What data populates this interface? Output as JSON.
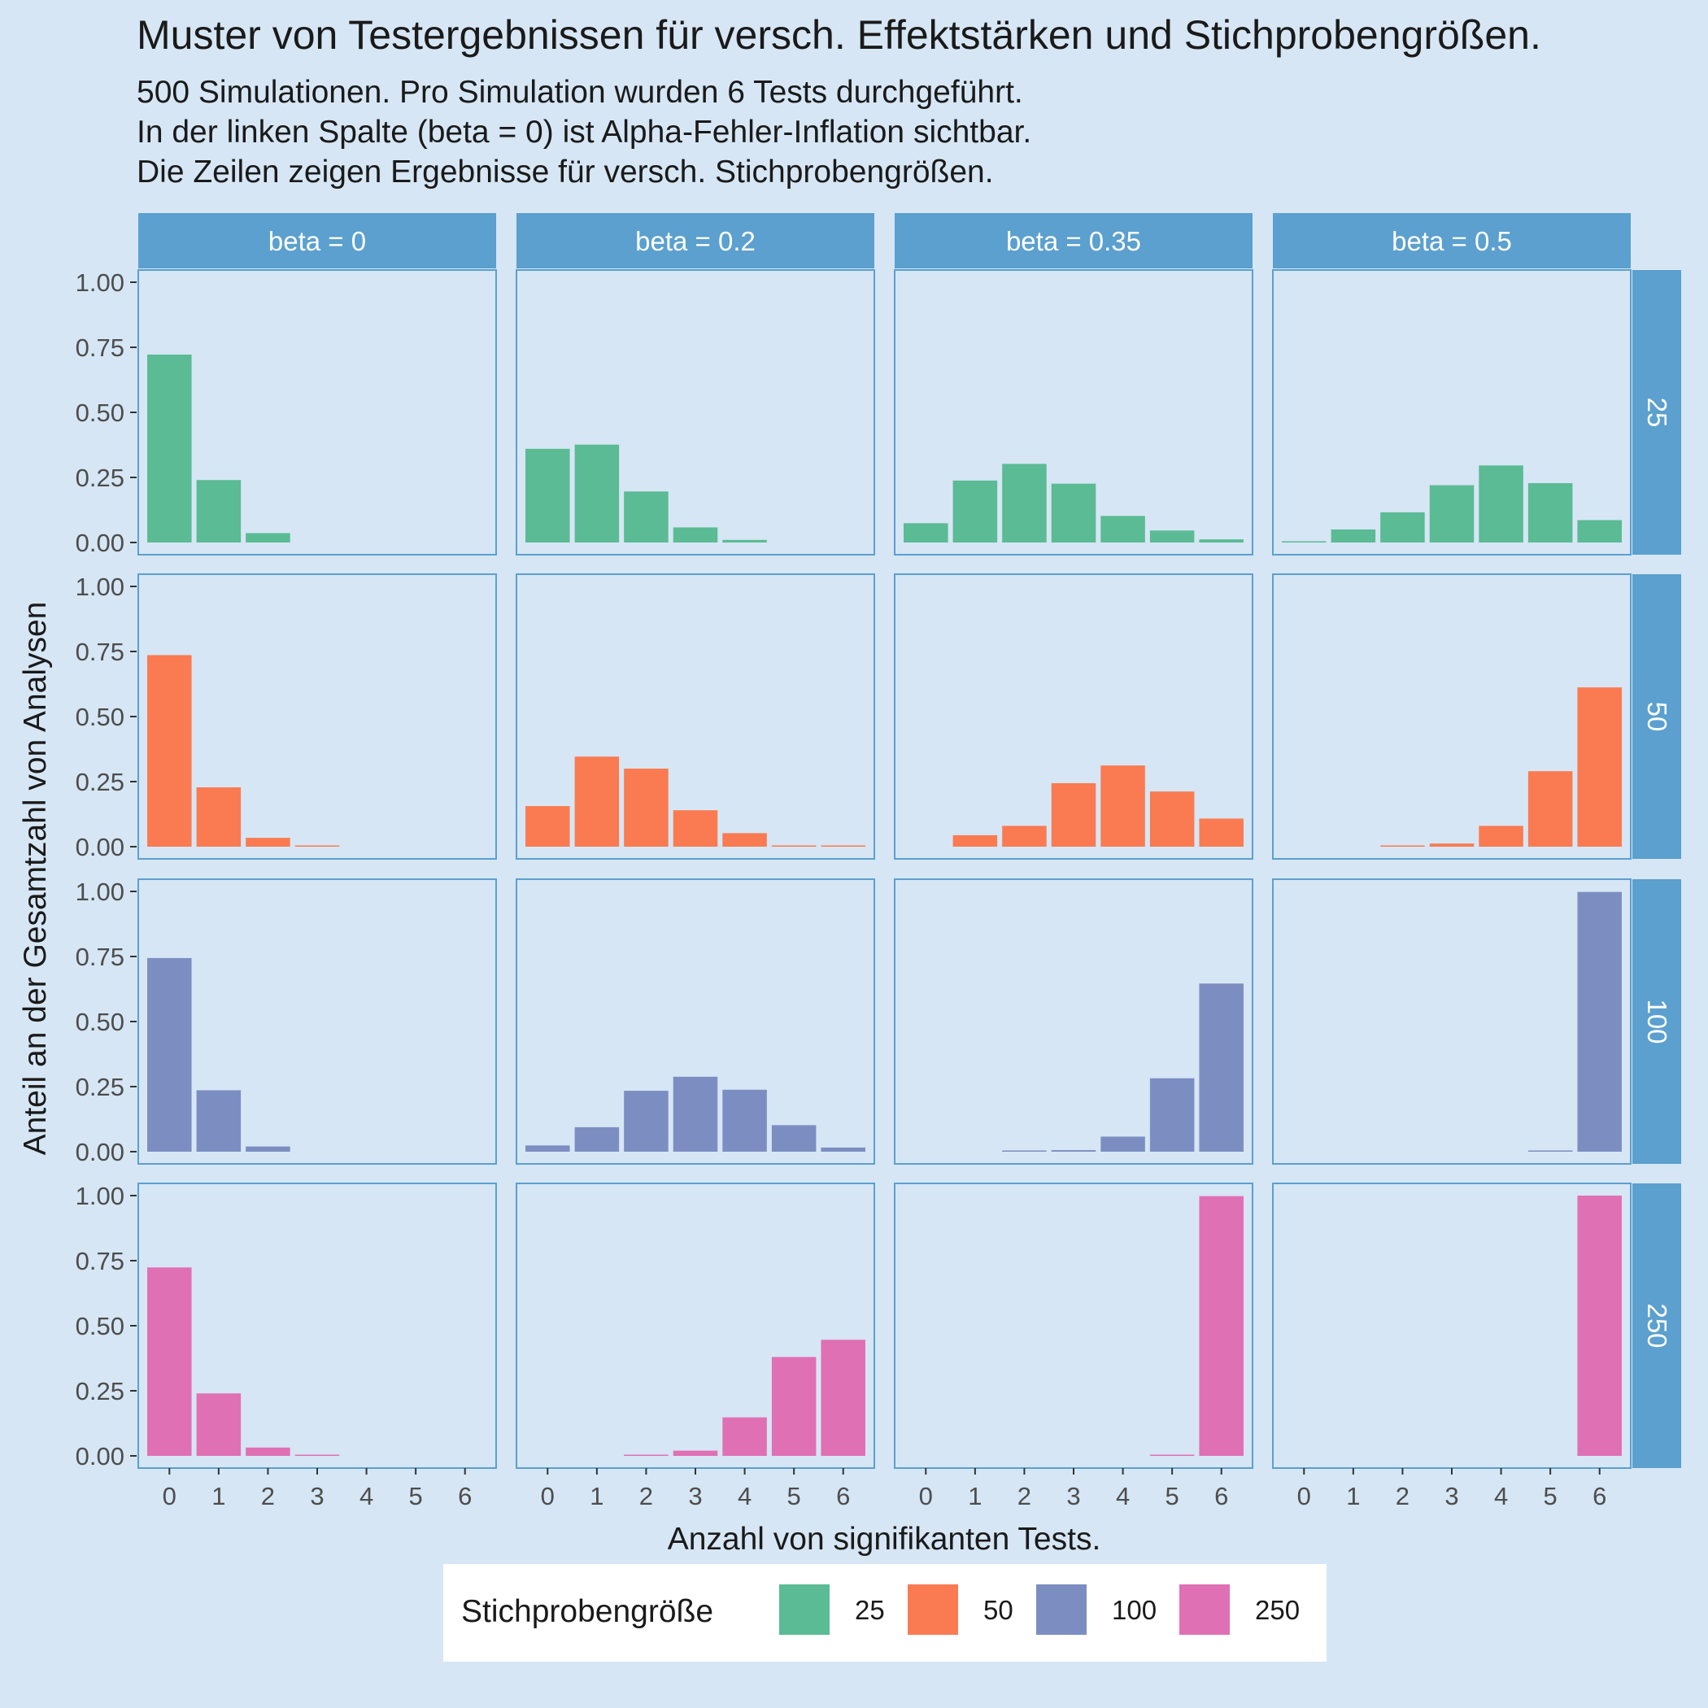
{
  "colors": {
    "background": "#D6E6F4",
    "strip": "#5BA0CE",
    "panel_border": "#5BA0CE",
    "strip_text": "#ffffff",
    "series": [
      "#5ABB94",
      "#FA7B51",
      "#7C8EC1",
      "#E070B4"
    ]
  },
  "chart_data": {
    "type": "bar",
    "title": "Muster von Testergebnissen für versch. Effektstärken und Stichprobengrößen.",
    "subtitle": [
      "500 Simulationen. Pro Simulation wurden 6 Tests durchgeführt.",
      "In der linken Spalte (beta = 0) ist Alpha-Fehler-Inflation sichtbar.",
      "Die Zeilen zeigen Ergebnisse für versch. Stichprobengrößen."
    ],
    "xlabel": "Anzahl von signifikanten Tests.",
    "ylabel": "Anteil an der Gesamtzahl von Analysen",
    "categories": [
      "0",
      "1",
      "2",
      "3",
      "4",
      "5",
      "6"
    ],
    "yticks": [
      "0.00",
      "0.25",
      "0.50",
      "0.75",
      "1.00"
    ],
    "ylim": [
      0,
      1
    ],
    "grid": false,
    "legend_position": "bottom",
    "facet_columns": [
      "beta = 0",
      "beta = 0.2",
      "beta = 0.35",
      "beta = 0.5"
    ],
    "facet_rows": [
      "25",
      "50",
      "100",
      "250"
    ],
    "legend": {
      "title": "Stichprobengröße",
      "entries": [
        "25",
        "50",
        "100",
        "250"
      ]
    },
    "panels": [
      [
        [
          0.722,
          0.24,
          0.036,
          0,
          0,
          0,
          0
        ],
        [
          0.36,
          0.376,
          0.196,
          0.058,
          0.01,
          0,
          0
        ],
        [
          0.074,
          0.238,
          0.302,
          0.226,
          0.102,
          0.046,
          0.012
        ],
        [
          0.004,
          0.05,
          0.116,
          0.22,
          0.296,
          0.228,
          0.086
        ]
      ],
      [
        [
          0.736,
          0.228,
          0.034,
          0.002,
          0,
          0,
          0
        ],
        [
          0.156,
          0.346,
          0.3,
          0.14,
          0.052,
          0.004,
          0.002
        ],
        [
          0,
          0.044,
          0.08,
          0.244,
          0.312,
          0.212,
          0.108
        ],
        [
          0,
          0,
          0.002,
          0.012,
          0.08,
          0.29,
          0.612
        ]
      ],
      [
        [
          0.744,
          0.236,
          0.02,
          0,
          0,
          0,
          0
        ],
        [
          0.024,
          0.094,
          0.234,
          0.288,
          0.238,
          0.102,
          0.016
        ],
        [
          0,
          0,
          0.002,
          0.006,
          0.058,
          0.282,
          0.646
        ],
        [
          0,
          0,
          0,
          0,
          0,
          0.002,
          0.998
        ]
      ],
      [
        [
          0.724,
          0.24,
          0.032,
          0.004,
          0,
          0,
          0
        ],
        [
          0,
          0,
          0.002,
          0.02,
          0.148,
          0.38,
          0.446
        ],
        [
          0,
          0,
          0,
          0,
          0,
          0.002,
          0.998
        ],
        [
          0,
          0,
          0,
          0,
          0,
          0,
          1.0
        ]
      ]
    ]
  }
}
